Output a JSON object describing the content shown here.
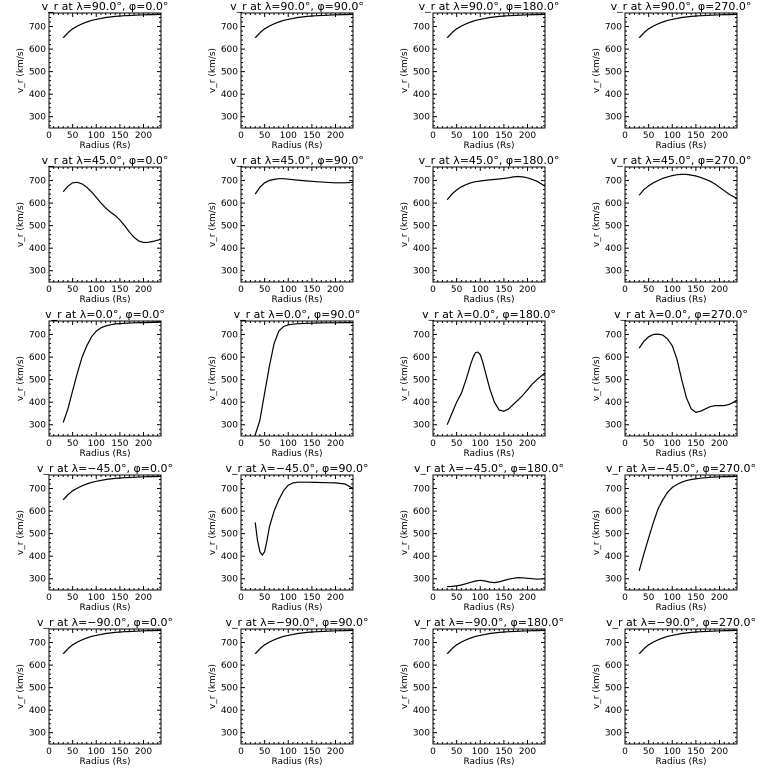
{
  "figure": {
    "xlabel": "Radius (Rs)",
    "ylabel": "v_r (km/s)",
    "xticks": [
      0,
      50,
      100,
      150,
      200
    ],
    "yticks": [
      300,
      400,
      500,
      600,
      700
    ],
    "xlim": [
      0,
      237
    ],
    "ylim": [
      250,
      760
    ]
  },
  "chart_data": [
    {
      "type": "line",
      "title": "v_r at λ=90.0°, φ=0.0°",
      "lambda": "90.0",
      "phi": "0.0",
      "series": [
        {
          "x": [
            30,
            40,
            50,
            60,
            70,
            80,
            90,
            100,
            120,
            140,
            160,
            180,
            200,
            220,
            237
          ],
          "values": [
            650,
            672,
            690,
            702,
            712,
            720,
            727,
            732,
            740,
            745,
            748,
            750,
            752,
            753,
            754
          ]
        }
      ]
    },
    {
      "type": "line",
      "title": "v_r at λ=90.0°, φ=90.0°",
      "lambda": "90.0",
      "phi": "90.0",
      "series": [
        {
          "x": [
            30,
            40,
            50,
            60,
            70,
            80,
            90,
            100,
            120,
            140,
            160,
            180,
            200,
            220,
            237
          ],
          "values": [
            650,
            672,
            690,
            702,
            712,
            720,
            727,
            732,
            740,
            745,
            748,
            750,
            752,
            753,
            754
          ]
        }
      ]
    },
    {
      "type": "line",
      "title": "v_r at λ=90.0°, φ=180.0°",
      "lambda": "90.0",
      "phi": "180.0",
      "series": [
        {
          "x": [
            30,
            40,
            50,
            60,
            70,
            80,
            90,
            100,
            120,
            140,
            160,
            180,
            200,
            220,
            237
          ],
          "values": [
            650,
            672,
            690,
            702,
            712,
            720,
            727,
            732,
            740,
            745,
            748,
            750,
            752,
            753,
            754
          ]
        }
      ]
    },
    {
      "type": "line",
      "title": "v_r at λ=90.0°, φ=270.0°",
      "lambda": "90.0",
      "phi": "270.0",
      "series": [
        {
          "x": [
            30,
            40,
            50,
            60,
            70,
            80,
            90,
            100,
            120,
            140,
            160,
            180,
            200,
            220,
            237
          ],
          "values": [
            650,
            672,
            690,
            702,
            712,
            720,
            727,
            732,
            740,
            745,
            748,
            750,
            752,
            753,
            754
          ]
        }
      ]
    },
    {
      "type": "line",
      "title": "v_r at λ=45.0°, φ=0.0°",
      "lambda": "45.0",
      "phi": "0.0",
      "series": [
        {
          "x": [
            30,
            40,
            50,
            60,
            70,
            80,
            90,
            100,
            110,
            120,
            130,
            140,
            150,
            160,
            170,
            180,
            190,
            200,
            210,
            220,
            237
          ],
          "values": [
            650,
            675,
            690,
            692,
            685,
            670,
            650,
            625,
            600,
            578,
            560,
            545,
            525,
            500,
            472,
            448,
            432,
            425,
            426,
            430,
            440
          ]
        }
      ]
    },
    {
      "type": "line",
      "title": "v_r at λ=45.0°, φ=90.0°",
      "lambda": "45.0",
      "phi": "90.0",
      "series": [
        {
          "x": [
            30,
            40,
            50,
            60,
            70,
            80,
            90,
            100,
            120,
            140,
            160,
            180,
            200,
            220,
            237
          ],
          "values": [
            640,
            670,
            690,
            700,
            705,
            708,
            708,
            706,
            702,
            698,
            695,
            692,
            690,
            690,
            692
          ]
        }
      ]
    },
    {
      "type": "line",
      "title": "v_r at λ=45.0°, φ=180.0°",
      "lambda": "45.0",
      "phi": "180.0",
      "series": [
        {
          "x": [
            30,
            40,
            50,
            60,
            70,
            80,
            90,
            100,
            120,
            140,
            160,
            170,
            180,
            190,
            200,
            210,
            220,
            237
          ],
          "values": [
            615,
            640,
            658,
            672,
            682,
            690,
            695,
            698,
            703,
            707,
            712,
            716,
            718,
            716,
            712,
            705,
            697,
            675
          ]
        }
      ]
    },
    {
      "type": "line",
      "title": "v_r at λ=45.0°, φ=270.0°",
      "lambda": "45.0",
      "phi": "270.0",
      "series": [
        {
          "x": [
            30,
            40,
            50,
            60,
            70,
            80,
            90,
            100,
            110,
            120,
            130,
            140,
            150,
            160,
            170,
            180,
            190,
            200,
            210,
            220,
            237
          ],
          "values": [
            635,
            660,
            676,
            690,
            700,
            710,
            716,
            722,
            726,
            727,
            727,
            724,
            720,
            714,
            706,
            697,
            685,
            670,
            655,
            640,
            620
          ]
        }
      ]
    },
    {
      "type": "line",
      "title": "v_r at λ=0.0°, φ=0.0°",
      "lambda": "0.0",
      "phi": "0.0",
      "series": [
        {
          "x": [
            30,
            40,
            50,
            60,
            70,
            80,
            90,
            100,
            110,
            120,
            130,
            140,
            160,
            180,
            200,
            220,
            237
          ],
          "values": [
            310,
            370,
            450,
            530,
            600,
            650,
            690,
            715,
            730,
            738,
            743,
            747,
            750,
            752,
            753,
            754,
            755
          ]
        }
      ]
    },
    {
      "type": "line",
      "title": "v_r at λ=0.0°, φ=90.0°",
      "lambda": "0.0",
      "phi": "90.0",
      "series": [
        {
          "x": [
            30,
            40,
            50,
            60,
            70,
            80,
            90,
            100,
            110,
            120,
            140,
            160,
            180,
            200,
            220,
            237
          ],
          "values": [
            255,
            320,
            440,
            560,
            660,
            715,
            735,
            743,
            746,
            748,
            750,
            751,
            752,
            752,
            753,
            753
          ]
        }
      ]
    },
    {
      "type": "line",
      "title": "v_r at λ=0.0°, φ=180.0°",
      "lambda": "0.0",
      "phi": "180.0",
      "series": [
        {
          "x": [
            30,
            40,
            50,
            60,
            70,
            80,
            85,
            90,
            95,
            100,
            105,
            110,
            120,
            130,
            140,
            150,
            160,
            170,
            180,
            190,
            200,
            210,
            220,
            237
          ],
          "values": [
            300,
            350,
            400,
            440,
            500,
            570,
            600,
            620,
            622,
            610,
            580,
            540,
            460,
            400,
            365,
            360,
            370,
            390,
            410,
            430,
            455,
            480,
            500,
            530
          ]
        }
      ]
    },
    {
      "type": "line",
      "title": "v_r at λ=0.0°, φ=270.0°",
      "lambda": "0.0",
      "phi": "270.0",
      "series": [
        {
          "x": [
            30,
            40,
            50,
            60,
            70,
            80,
            90,
            100,
            110,
            120,
            130,
            140,
            150,
            160,
            170,
            180,
            190,
            200,
            210,
            220,
            230,
            237
          ],
          "values": [
            640,
            670,
            690,
            700,
            702,
            698,
            680,
            650,
            590,
            500,
            420,
            370,
            355,
            360,
            370,
            380,
            385,
            385,
            385,
            390,
            400,
            410
          ]
        }
      ]
    },
    {
      "type": "line",
      "title": "v_r at λ=−45.0°, φ=0.0°",
      "lambda": "−45.0",
      "phi": "0.0",
      "series": [
        {
          "x": [
            30,
            40,
            50,
            60,
            70,
            80,
            90,
            100,
            120,
            140,
            160,
            180,
            200,
            220,
            237
          ],
          "values": [
            650,
            672,
            690,
            702,
            712,
            720,
            727,
            732,
            740,
            745,
            748,
            750,
            752,
            753,
            754
          ]
        }
      ]
    },
    {
      "type": "line",
      "title": "v_r at λ=−45.0°, φ=90.0°",
      "lambda": "−45.0",
      "phi": "90.0",
      "series": [
        {
          "x": [
            30,
            35,
            40,
            45,
            50,
            55,
            60,
            70,
            80,
            90,
            100,
            110,
            120,
            140,
            160,
            180,
            200,
            220,
            237
          ],
          "values": [
            550,
            470,
            420,
            405,
            420,
            470,
            530,
            600,
            650,
            690,
            715,
            725,
            728,
            728,
            727,
            726,
            725,
            720,
            700
          ]
        }
      ]
    },
    {
      "type": "line",
      "title": "v_r at λ=−45.0°, φ=180.0°",
      "lambda": "−45.0",
      "phi": "180.0",
      "series": [
        {
          "x": [
            30,
            40,
            50,
            60,
            70,
            80,
            90,
            100,
            110,
            120,
            130,
            140,
            150,
            160,
            170,
            180,
            190,
            200,
            210,
            220,
            237
          ],
          "values": [
            265,
            266,
            268,
            272,
            278,
            284,
            290,
            293,
            290,
            285,
            283,
            286,
            292,
            298,
            302,
            305,
            304,
            302,
            300,
            298,
            300
          ]
        }
      ]
    },
    {
      "type": "line",
      "title": "v_r at λ=−45.0°, φ=270.0°",
      "lambda": "−45.0",
      "phi": "270.0",
      "series": [
        {
          "x": [
            30,
            40,
            50,
            60,
            70,
            80,
            90,
            100,
            110,
            120,
            130,
            140,
            160,
            180,
            200,
            220,
            237
          ],
          "values": [
            335,
            410,
            480,
            550,
            610,
            650,
            683,
            705,
            718,
            728,
            735,
            740,
            746,
            750,
            752,
            753,
            754
          ]
        }
      ]
    },
    {
      "type": "line",
      "title": "v_r at λ=−90.0°, φ=0.0°",
      "lambda": "−90.0",
      "phi": "0.0",
      "series": [
        {
          "x": [
            30,
            40,
            50,
            60,
            70,
            80,
            90,
            100,
            120,
            140,
            160,
            180,
            200,
            220,
            237
          ],
          "values": [
            650,
            672,
            690,
            702,
            712,
            720,
            727,
            732,
            740,
            745,
            748,
            750,
            752,
            753,
            754
          ]
        }
      ]
    },
    {
      "type": "line",
      "title": "v_r at λ=−90.0°, φ=90.0°",
      "lambda": "−90.0",
      "phi": "90.0",
      "series": [
        {
          "x": [
            30,
            40,
            50,
            60,
            70,
            80,
            90,
            100,
            120,
            140,
            160,
            180,
            200,
            220,
            237
          ],
          "values": [
            650,
            672,
            690,
            702,
            712,
            720,
            727,
            732,
            740,
            745,
            748,
            750,
            752,
            753,
            754
          ]
        }
      ]
    },
    {
      "type": "line",
      "title": "v_r at λ=−90.0°, φ=180.0°",
      "lambda": "−90.0",
      "phi": "180.0",
      "series": [
        {
          "x": [
            30,
            40,
            50,
            60,
            70,
            80,
            90,
            100,
            120,
            140,
            160,
            180,
            200,
            220,
            237
          ],
          "values": [
            650,
            672,
            690,
            702,
            712,
            720,
            727,
            732,
            740,
            745,
            748,
            750,
            752,
            753,
            754
          ]
        }
      ]
    },
    {
      "type": "line",
      "title": "v_r at λ=−90.0°, φ=270.0°",
      "lambda": "−90.0",
      "phi": "270.0",
      "series": [
        {
          "x": [
            30,
            40,
            50,
            60,
            70,
            80,
            90,
            100,
            120,
            140,
            160,
            180,
            200,
            220,
            237
          ],
          "values": [
            650,
            672,
            690,
            702,
            712,
            720,
            727,
            732,
            740,
            745,
            748,
            750,
            752,
            753,
            754
          ]
        }
      ]
    }
  ]
}
